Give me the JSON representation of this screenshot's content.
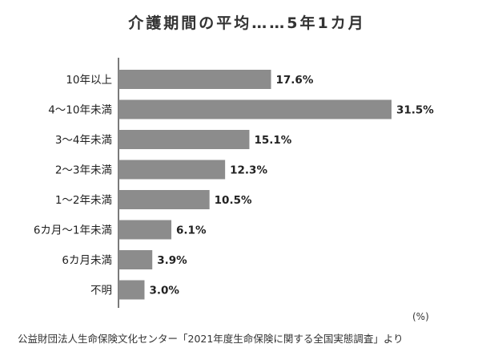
{
  "chart_data": {
    "type": "bar",
    "orientation": "horizontal",
    "title": "介護期間の平均……5年1カ月",
    "categories": [
      "10年以上",
      "4〜10年未満",
      "3〜4年未満",
      "2〜3年未満",
      "1〜2年未満",
      "6カ月〜1年未満",
      "6カ月未満",
      "不明"
    ],
    "values": [
      17.6,
      31.5,
      15.1,
      12.3,
      10.5,
      6.1,
      3.9,
      3.0
    ],
    "value_labels": [
      "17.6%",
      "31.5%",
      "15.1%",
      "12.3%",
      "10.5%",
      "6.1%",
      "3.9%",
      "3.0%"
    ],
    "unit_label": "(%)",
    "xlim": [
      0,
      35
    ],
    "grid": false,
    "bar_color": "#8c8c8c",
    "source": "公益財団法人生命保険文化センター「2021年度生命保険に関する全国実態調査」より"
  }
}
